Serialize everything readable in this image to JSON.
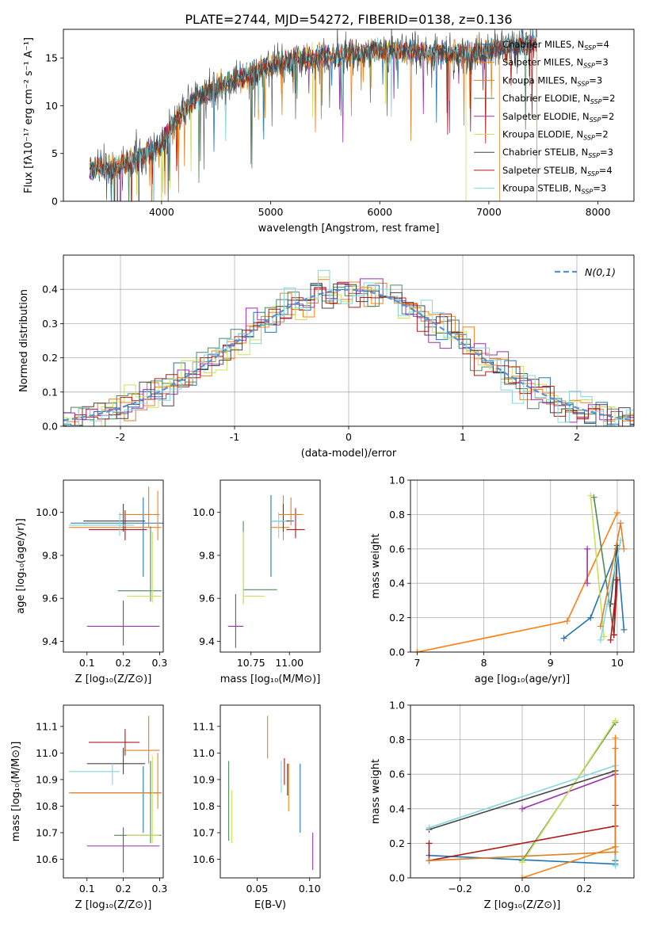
{
  "figure_title": "PLATE=2744, MJD=54272, FIBERID=0138, z=0.136",
  "models": [
    {
      "label": "Chabrier MILES, N",
      "sub": "SSP",
      "n": "=4",
      "color": "#1f77b4"
    },
    {
      "label": "Salpeter MILES, N",
      "sub": "SSP",
      "n": "=3",
      "color": "#ff7f0e"
    },
    {
      "label": "Kroupa MILES, N",
      "sub": "SSP",
      "n": "=3",
      "color": "#d9822b"
    },
    {
      "label": "Chabrier ELODIE, N",
      "sub": "SSP",
      "n": "=2",
      "color": "#4e8a5a"
    },
    {
      "label": "Salpeter ELODIE, N",
      "sub": "SSP",
      "n": "=2",
      "color": "#9b30b0"
    },
    {
      "label": "Kroupa ELODIE, N",
      "sub": "SSP",
      "n": "=2",
      "color": "#cde05a"
    },
    {
      "label": "Chabrier STELIB, N",
      "sub": "SSP",
      "n": "=3",
      "color": "#444444"
    },
    {
      "label": "Salpeter STELIB, N",
      "sub": "SSP",
      "n": "=4",
      "color": "#b01a1a"
    },
    {
      "label": "Kroupa STELIB, N",
      "sub": "SSP",
      "n": "=3",
      "color": "#7fd8e0"
    }
  ],
  "chart_data": [
    {
      "id": "spectrum",
      "type": "line",
      "xlabel": "wavelength [Angstrom, rest frame]",
      "ylabel": "Flux [fλ10⁻¹⁷ erg cm⁻² s⁻¹ A⁻¹]",
      "xlim": [
        3100,
        8330
      ],
      "ylim": [
        0,
        18
      ],
      "xticks": [
        4000,
        5000,
        6000,
        7000,
        8000
      ],
      "yticks": [
        0,
        5,
        10,
        15
      ],
      "data_wavelength_range": [
        3340,
        7440
      ],
      "continuum_shape": [
        [
          3340,
          3.2
        ],
        [
          3600,
          3.8
        ],
        [
          3800,
          4.6
        ],
        [
          4000,
          6.0
        ],
        [
          4200,
          9.5
        ],
        [
          4400,
          11.5
        ],
        [
          4700,
          12.8
        ],
        [
          5000,
          14.2
        ],
        [
          5300,
          15.0
        ],
        [
          5700,
          15.3
        ],
        [
          6000,
          15.8
        ],
        [
          6400,
          15.6
        ],
        [
          6800,
          15.5
        ],
        [
          7200,
          16.2
        ],
        [
          7440,
          16.6
        ]
      ],
      "legend_position": "upper right"
    },
    {
      "id": "residuals",
      "type": "histogram",
      "xlabel": "(data-model)/error",
      "ylabel": "Normed distribution",
      "xlim": [
        -2.5,
        2.5
      ],
      "ylim": [
        0,
        0.5
      ],
      "xticks": [
        -2,
        -1,
        0,
        1,
        2
      ],
      "yticks": [
        0.0,
        0.1,
        0.2,
        0.3,
        0.4
      ],
      "bin_width": 0.1,
      "reference": {
        "label": "N(0,1)",
        "mean": 0,
        "sigma": 1,
        "color": "#5a8fd6"
      },
      "grid": true,
      "legend_position": "upper right"
    },
    {
      "id": "age_vs_Z",
      "type": "errorbar",
      "xlabel": "Z [log₁₀(Z/Z⊙)]",
      "ylabel": "age  [log₁₀(age/yr)]",
      "xlim": [
        0.035,
        0.31
      ],
      "ylim": [
        9.35,
        10.15
      ],
      "xticks": [
        0.1,
        0.2,
        0.3
      ],
      "yticks": [
        9.4,
        9.6,
        9.8,
        10.0
      ],
      "points": [
        {
          "m": 0,
          "x": 0.255,
          "y": 9.95,
          "xerr": [
            0.2,
            0.06
          ],
          "yerr": [
            0.25,
            0.12
          ]
        },
        {
          "m": 1,
          "x": 0.295,
          "y": 9.93,
          "xerr": [
            0.245,
            0.01
          ],
          "yerr": [
            0.06,
            0.17
          ]
        },
        {
          "m": 3,
          "x": 0.275,
          "y": 9.635,
          "xerr": [
            0.09,
            0.03
          ],
          "yerr": [
            0.05,
            0.3
          ]
        },
        {
          "m": 4,
          "x": 0.2,
          "y": 9.47,
          "xerr": [
            0.1,
            0.1
          ],
          "yerr": [
            0.09,
            0.12
          ]
        },
        {
          "m": 5,
          "x": 0.28,
          "y": 9.61,
          "xerr": [
            0.07,
            0.025
          ],
          "yerr": [
            0.03,
            0.3
          ]
        },
        {
          "m": 6,
          "x": 0.2,
          "y": 9.96,
          "xerr": [
            0.11,
            0.06
          ],
          "yerr": [
            0.05,
            0.08
          ]
        },
        {
          "m": 7,
          "x": 0.205,
          "y": 9.92,
          "xerr": [
            0.1,
            0.06
          ],
          "yerr": [
            0.05,
            0.09
          ]
        },
        {
          "m": 8,
          "x": 0.19,
          "y": 9.94,
          "xerr": [
            0.14,
            0.04
          ],
          "yerr": [
            0.05,
            0.06
          ]
        },
        {
          "m": 2,
          "x": 0.27,
          "y": 9.99,
          "xerr": [
            0.08,
            0.03
          ],
          "yerr": [
            0.06,
            0.13
          ]
        }
      ]
    },
    {
      "id": "age_vs_mass",
      "type": "errorbar",
      "xlabel": "mass [log₁₀(M/M⊙)]",
      "ylabel": "",
      "xlim": [
        10.55,
        11.2
      ],
      "ylim": [
        9.35,
        10.15
      ],
      "xticks": [
        10.75,
        11.0
      ],
      "xticklabels": [
        "10.75",
        "11.00"
      ],
      "yticks": [
        9.4,
        9.6,
        9.8,
        10.0
      ],
      "points": [
        {
          "m": 0,
          "x": 10.88,
          "y": 9.96,
          "xerr": [
            0.0,
            0.15
          ],
          "yerr": [
            0.26,
            0.12
          ]
        },
        {
          "m": 1,
          "x": 10.96,
          "y": 9.93,
          "xerr": [
            0.08,
            0.04
          ],
          "yerr": [
            0.06,
            0.15
          ]
        },
        {
          "m": 3,
          "x": 10.7,
          "y": 9.64,
          "xerr": [
            0.0,
            0.22
          ],
          "yerr": [
            0.06,
            0.32
          ]
        },
        {
          "m": 4,
          "x": 10.65,
          "y": 9.47,
          "xerr": [
            0.05,
            0.05
          ],
          "yerr": [
            0.1,
            0.15
          ]
        },
        {
          "m": 5,
          "x": 10.7,
          "y": 9.61,
          "xerr": [
            0.0,
            0.14
          ],
          "yerr": [
            0.04,
            0.3
          ]
        },
        {
          "m": 6,
          "x": 10.96,
          "y": 9.96,
          "xerr": [
            0.08,
            0.04
          ],
          "yerr": [
            0.05,
            0.08
          ]
        },
        {
          "m": 7,
          "x": 11.04,
          "y": 9.92,
          "xerr": [
            0.06,
            0.06
          ],
          "yerr": [
            0.04,
            0.1
          ]
        },
        {
          "m": 8,
          "x": 10.93,
          "y": 9.96,
          "xerr": [
            0.05,
            0.05
          ],
          "yerr": [
            0.08,
            0.04
          ]
        },
        {
          "m": 2,
          "x": 11.01,
          "y": 9.99,
          "xerr": [
            0.08,
            0.08
          ],
          "yerr": [
            0.05,
            0.08
          ]
        }
      ]
    },
    {
      "id": "weight_vs_age",
      "type": "line",
      "xlabel": "age  [log₁₀(age/yr)]",
      "ylabel": "mass weight",
      "xlim": [
        6.9,
        10.25
      ],
      "ylim": [
        0,
        1.0
      ],
      "xticks": [
        7,
        8,
        9,
        10
      ],
      "yticks": [
        0.0,
        0.2,
        0.4,
        0.6,
        0.8,
        1.0
      ],
      "grid": true,
      "series": [
        {
          "m": 0,
          "points": [
            [
              9.2,
              0.08
            ],
            [
              9.6,
              0.2
            ],
            [
              10.0,
              0.6
            ],
            [
              10.1,
              0.13
            ]
          ]
        },
        {
          "m": 1,
          "points": [
            [
              7.0,
              0.0
            ],
            [
              9.25,
              0.18
            ],
            [
              10.0,
              0.81
            ]
          ]
        },
        {
          "m": 3,
          "points": [
            [
              9.65,
              0.9
            ],
            [
              9.95,
              0.1
            ]
          ]
        },
        {
          "m": 4,
          "points": [
            [
              9.55,
              0.6
            ],
            [
              9.55,
              0.4
            ]
          ]
        },
        {
          "m": 5,
          "points": [
            [
              9.6,
              0.91
            ],
            [
              9.8,
              0.09
            ]
          ]
        },
        {
          "m": 6,
          "points": [
            [
              9.9,
              0.28
            ],
            [
              10.0,
              0.62
            ],
            [
              9.95,
              0.1
            ]
          ]
        },
        {
          "m": 7,
          "points": [
            [
              9.9,
              0.07
            ],
            [
              10.0,
              0.42
            ],
            [
              9.95,
              0.1
            ]
          ]
        },
        {
          "m": 8,
          "points": [
            [
              9.75,
              0.07
            ],
            [
              9.85,
              0.28
            ],
            [
              10.05,
              0.65
            ]
          ]
        },
        {
          "m": 2,
          "points": [
            [
              9.75,
              0.15
            ],
            [
              10.05,
              0.75
            ],
            [
              10.1,
              0.6
            ]
          ]
        }
      ]
    },
    {
      "id": "mass_vs_Z",
      "type": "errorbar",
      "xlabel": "Z [log₁₀(Z/Z⊙)]",
      "ylabel": "mass [log₁₀(M/M⊙)]",
      "xlim": [
        0.035,
        0.31
      ],
      "ylim": [
        10.53,
        11.18
      ],
      "xticks": [
        0.1,
        0.2,
        0.3
      ],
      "yticks": [
        10.6,
        10.7,
        10.8,
        10.9,
        11.0,
        11.1
      ],
      "points": [
        {
          "m": 0,
          "x": 0.255,
          "y": 10.85,
          "xerr": [
            0.2,
            0.05
          ],
          "yerr": [
            0.15,
            0.1
          ]
        },
        {
          "m": 1,
          "x": 0.295,
          "y": 10.85,
          "xerr": [
            0.245,
            0.01
          ],
          "yerr": [
            0.06,
            0.15
          ]
        },
        {
          "m": 3,
          "x": 0.275,
          "y": 10.69,
          "xerr": [
            0.1,
            0.03
          ],
          "yerr": [
            0.03,
            0.28
          ]
        },
        {
          "m": 4,
          "x": 0.2,
          "y": 10.65,
          "xerr": [
            0.1,
            0.1
          ],
          "yerr": [
            0.1,
            0.07
          ]
        },
        {
          "m": 5,
          "x": 0.28,
          "y": 10.69,
          "xerr": [
            0.07,
            0.02
          ],
          "yerr": [
            0.03,
            0.3
          ]
        },
        {
          "m": 6,
          "x": 0.2,
          "y": 10.96,
          "xerr": [
            0.1,
            0.06
          ],
          "yerr": [
            0.04,
            0.06
          ]
        },
        {
          "m": 7,
          "x": 0.205,
          "y": 11.04,
          "xerr": [
            0.1,
            0.04
          ],
          "yerr": [
            0.05,
            0.05
          ]
        },
        {
          "m": 8,
          "x": 0.17,
          "y": 10.93,
          "xerr": [
            0.12,
            0.02
          ],
          "yerr": [
            0.05,
            0.03
          ]
        },
        {
          "m": 2,
          "x": 0.27,
          "y": 11.01,
          "xerr": [
            0.07,
            0.03
          ],
          "yerr": [
            0.05,
            0.13
          ]
        }
      ]
    },
    {
      "id": "mass_vs_EBV",
      "type": "errorbar",
      "xlabel": "E(B-V)",
      "ylabel": "",
      "xlim": [
        0.015,
        0.11
      ],
      "ylim": [
        10.53,
        11.18
      ],
      "xticks": [
        0.05,
        0.1
      ],
      "xticklabels": [
        "0.05",
        "0.10"
      ],
      "yticks": [
        10.6,
        10.7,
        10.8,
        10.9,
        11.0,
        11.1
      ],
      "points": [
        {
          "m": 0,
          "x": 0.091,
          "y": 10.83,
          "xerr": [
            0,
            0
          ],
          "yerr": [
            0.13,
            0.13
          ]
        },
        {
          "m": 1,
          "x": 0.08,
          "y": 10.87,
          "xerr": [
            0,
            0
          ],
          "yerr": [
            0.09,
            0.09
          ]
        },
        {
          "m": 3,
          "x": 0.023,
          "y": 10.82,
          "xerr": [
            0,
            0
          ],
          "yerr": [
            0.15,
            0.15
          ]
        },
        {
          "m": 4,
          "x": 0.103,
          "y": 10.63,
          "xerr": [
            0,
            0
          ],
          "yerr": [
            0.07,
            0.07
          ]
        },
        {
          "m": 5,
          "x": 0.026,
          "y": 10.76,
          "xerr": [
            0,
            0
          ],
          "yerr": [
            0.1,
            0.1
          ]
        },
        {
          "m": 6,
          "x": 0.079,
          "y": 10.9,
          "xerr": [
            0,
            0
          ],
          "yerr": [
            0.06,
            0.06
          ]
        },
        {
          "m": 7,
          "x": 0.076,
          "y": 10.93,
          "xerr": [
            0,
            0
          ],
          "yerr": [
            0.05,
            0.05
          ]
        },
        {
          "m": 8,
          "x": 0.073,
          "y": 10.91,
          "xerr": [
            0,
            0
          ],
          "yerr": [
            0.06,
            0.06
          ]
        },
        {
          "m": 2,
          "x": 0.06,
          "y": 11.06,
          "xerr": [
            0,
            0
          ],
          "yerr": [
            0.08,
            0.08
          ]
        }
      ]
    },
    {
      "id": "weight_vs_Z",
      "type": "line",
      "xlabel": "Z [log₁₀(Z/Z⊙)]",
      "ylabel": "mass weight",
      "xlim": [
        -0.36,
        0.36
      ],
      "ylim": [
        0,
        1.0
      ],
      "xticks": [
        -0.2,
        0.0,
        0.2
      ],
      "xticklabels": [
        "−0.2",
        "0.0",
        "0.2"
      ],
      "yticks": [
        0.0,
        0.2,
        0.4,
        0.6,
        0.8,
        1.0
      ],
      "grid": true,
      "series": [
        {
          "m": 0,
          "points": [
            [
              -0.3,
              0.13
            ],
            [
              0.3,
              0.08
            ],
            [
              0.3,
              0.6
            ]
          ]
        },
        {
          "m": 1,
          "points": [
            [
              0.0,
              0.0
            ],
            [
              0.3,
              0.18
            ],
            [
              0.3,
              0.81
            ]
          ]
        },
        {
          "m": 3,
          "points": [
            [
              0.0,
              0.1
            ],
            [
              0.3,
              0.9
            ]
          ]
        },
        {
          "m": 4,
          "points": [
            [
              0.0,
              0.4
            ],
            [
              0.3,
              0.6
            ]
          ]
        },
        {
          "m": 5,
          "points": [
            [
              0.0,
              0.09
            ],
            [
              0.3,
              0.91
            ]
          ]
        },
        {
          "m": 6,
          "points": [
            [
              -0.3,
              0.28
            ],
            [
              0.3,
              0.62
            ],
            [
              0.3,
              0.1
            ]
          ]
        },
        {
          "m": 7,
          "points": [
            [
              -0.3,
              0.2
            ],
            [
              -0.3,
              0.1
            ],
            [
              0.3,
              0.3
            ],
            [
              0.3,
              0.42
            ]
          ]
        },
        {
          "m": 8,
          "points": [
            [
              -0.3,
              0.29
            ],
            [
              0.3,
              0.65
            ],
            [
              0.3,
              0.07
            ]
          ]
        },
        {
          "m": 2,
          "points": [
            [
              -0.3,
              0.1
            ],
            [
              0.3,
              0.15
            ],
            [
              0.3,
              0.75
            ]
          ]
        }
      ]
    }
  ]
}
